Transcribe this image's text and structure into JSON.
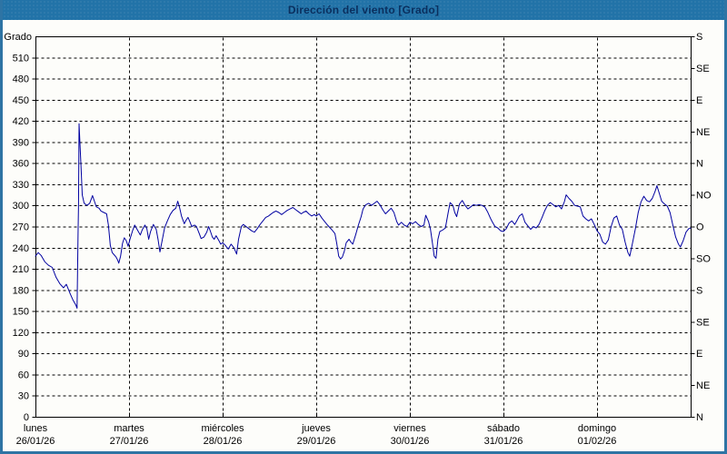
{
  "window": {
    "title": "Dirección del viento [Grado]"
  },
  "chart_data": {
    "type": "line",
    "title": "Dirección del viento [Grado]",
    "ylabel": "Grado",
    "grid": true,
    "grid_style": "dashed",
    "legend_position": "none",
    "line_color": "#0000a0",
    "y_axis_left": {
      "min": 0,
      "max": 540,
      "step": 30,
      "last_labeled": 510
    },
    "y_axis_right": {
      "step": 45,
      "labels": [
        "N",
        "NE",
        "E",
        "SE",
        "S",
        "SO",
        "O",
        "NO",
        "N",
        "NE",
        "E",
        "SE",
        "S"
      ]
    },
    "x_axis": {
      "days": [
        {
          "name": "lunes",
          "date": "26/01/26"
        },
        {
          "name": "martes",
          "date": "27/01/26"
        },
        {
          "name": "miércoles",
          "date": "28/01/26"
        },
        {
          "name": "jueves",
          "date": "29/01/26"
        },
        {
          "name": "viernes",
          "date": "30/01/26"
        },
        {
          "name": "sábado",
          "date": "31/01/26"
        },
        {
          "name": "domingo",
          "date": "01/02/26"
        }
      ]
    },
    "series": [
      {
        "name": "Dirección del viento [Grado]",
        "points": [
          [
            0.0,
            228
          ],
          [
            0.03,
            233
          ],
          [
            0.06,
            229
          ],
          [
            0.1,
            220
          ],
          [
            0.14,
            215
          ],
          [
            0.18,
            212
          ],
          [
            0.22,
            198
          ],
          [
            0.26,
            189
          ],
          [
            0.3,
            183
          ],
          [
            0.33,
            188
          ],
          [
            0.37,
            175
          ],
          [
            0.4,
            166
          ],
          [
            0.43,
            159
          ],
          [
            0.445,
            154
          ],
          [
            0.455,
            260
          ],
          [
            0.46,
            300
          ],
          [
            0.466,
            416
          ],
          [
            0.475,
            390
          ],
          [
            0.485,
            360
          ],
          [
            0.495,
            330
          ],
          [
            0.5,
            315
          ],
          [
            0.52,
            303
          ],
          [
            0.55,
            300
          ],
          [
            0.58,
            303
          ],
          [
            0.61,
            314
          ],
          [
            0.63,
            306
          ],
          [
            0.65,
            298
          ],
          [
            0.68,
            296
          ],
          [
            0.7,
            292
          ],
          [
            0.73,
            290
          ],
          [
            0.76,
            288
          ],
          [
            0.78,
            272
          ],
          [
            0.8,
            243
          ],
          [
            0.82,
            233
          ],
          [
            0.84,
            230
          ],
          [
            0.86,
            227
          ],
          [
            0.88,
            222
          ],
          [
            0.89,
            218
          ],
          [
            0.91,
            228
          ],
          [
            0.93,
            246
          ],
          [
            0.95,
            254
          ],
          [
            0.97,
            250
          ],
          [
            0.99,
            242
          ],
          [
            1.01,
            252
          ],
          [
            1.04,
            265
          ],
          [
            1.06,
            272
          ],
          [
            1.09,
            265
          ],
          [
            1.12,
            258
          ],
          [
            1.14,
            265
          ],
          [
            1.17,
            272
          ],
          [
            1.19,
            267
          ],
          [
            1.21,
            252
          ],
          [
            1.23,
            263
          ],
          [
            1.26,
            273
          ],
          [
            1.29,
            266
          ],
          [
            1.31,
            252
          ],
          [
            1.33,
            234
          ],
          [
            1.35,
            248
          ],
          [
            1.38,
            268
          ],
          [
            1.41,
            278
          ],
          [
            1.44,
            287
          ],
          [
            1.47,
            293
          ],
          [
            1.5,
            296
          ],
          [
            1.52,
            306
          ],
          [
            1.54,
            297
          ],
          [
            1.56,
            285
          ],
          [
            1.59,
            274
          ],
          [
            1.61,
            279
          ],
          [
            1.63,
            283
          ],
          [
            1.65,
            277
          ],
          [
            1.67,
            270
          ],
          [
            1.7,
            272
          ],
          [
            1.72,
            270
          ],
          [
            1.75,
            260
          ],
          [
            1.77,
            253
          ],
          [
            1.8,
            255
          ],
          [
            1.83,
            262
          ],
          [
            1.85,
            270
          ],
          [
            1.87,
            263
          ],
          [
            1.89,
            255
          ],
          [
            1.91,
            252
          ],
          [
            1.93,
            257
          ],
          [
            1.96,
            250
          ],
          [
            1.98,
            245
          ],
          [
            2.0,
            247
          ],
          [
            2.03,
            243
          ],
          [
            2.06,
            238
          ],
          [
            2.09,
            245
          ],
          [
            2.12,
            240
          ],
          [
            2.15,
            231
          ],
          [
            2.17,
            252
          ],
          [
            2.2,
            270
          ],
          [
            2.22,
            273
          ],
          [
            2.25,
            270
          ],
          [
            2.28,
            267
          ],
          [
            2.31,
            264
          ],
          [
            2.34,
            262
          ],
          [
            2.37,
            267
          ],
          [
            2.4,
            273
          ],
          [
            2.43,
            278
          ],
          [
            2.46,
            283
          ],
          [
            2.49,
            285
          ],
          [
            2.51,
            287
          ],
          [
            2.54,
            290
          ],
          [
            2.57,
            292
          ],
          [
            2.6,
            290
          ],
          [
            2.63,
            287
          ],
          [
            2.66,
            290
          ],
          [
            2.69,
            293
          ],
          [
            2.72,
            295
          ],
          [
            2.75,
            297
          ],
          [
            2.78,
            294
          ],
          [
            2.81,
            291
          ],
          [
            2.84,
            288
          ],
          [
            2.86,
            290
          ],
          [
            2.89,
            292
          ],
          [
            2.92,
            288
          ],
          [
            2.95,
            285
          ],
          [
            2.98,
            287
          ],
          [
            3.0,
            285
          ],
          [
            3.03,
            288
          ],
          [
            3.06,
            282
          ],
          [
            3.09,
            277
          ],
          [
            3.12,
            272
          ],
          [
            3.15,
            268
          ],
          [
            3.17,
            265
          ],
          [
            3.2,
            260
          ],
          [
            3.22,
            245
          ],
          [
            3.24,
            228
          ],
          [
            3.26,
            224
          ],
          [
            3.28,
            227
          ],
          [
            3.3,
            235
          ],
          [
            3.32,
            247
          ],
          [
            3.35,
            252
          ],
          [
            3.37,
            248
          ],
          [
            3.39,
            245
          ],
          [
            3.42,
            258
          ],
          [
            3.45,
            272
          ],
          [
            3.48,
            284
          ],
          [
            3.5,
            295
          ],
          [
            3.53,
            301
          ],
          [
            3.56,
            303
          ],
          [
            3.59,
            300
          ],
          [
            3.62,
            303
          ],
          [
            3.65,
            306
          ],
          [
            3.68,
            301
          ],
          [
            3.71,
            294
          ],
          [
            3.74,
            288
          ],
          [
            3.77,
            292
          ],
          [
            3.8,
            296
          ],
          [
            3.83,
            290
          ],
          [
            3.86,
            277
          ],
          [
            3.88,
            272
          ],
          [
            3.91,
            276
          ],
          [
            3.94,
            272
          ],
          [
            3.97,
            270
          ],
          [
            4.0,
            276
          ],
          [
            4.03,
            274
          ],
          [
            4.06,
            277
          ],
          [
            4.09,
            273
          ],
          [
            4.12,
            270
          ],
          [
            4.15,
            272
          ],
          [
            4.17,
            286
          ],
          [
            4.2,
            277
          ],
          [
            4.22,
            266
          ],
          [
            4.24,
            248
          ],
          [
            4.26,
            228
          ],
          [
            4.28,
            225
          ],
          [
            4.3,
            252
          ],
          [
            4.32,
            263
          ],
          [
            4.35,
            265
          ],
          [
            4.38,
            268
          ],
          [
            4.41,
            290
          ],
          [
            4.43,
            304
          ],
          [
            4.46,
            300
          ],
          [
            4.48,
            290
          ],
          [
            4.5,
            284
          ],
          [
            4.53,
            302
          ],
          [
            4.56,
            307
          ],
          [
            4.59,
            300
          ],
          [
            4.62,
            295
          ],
          [
            4.65,
            298
          ],
          [
            4.68,
            301
          ],
          [
            4.71,
            300
          ],
          [
            4.74,
            301
          ],
          [
            4.77,
            300
          ],
          [
            4.8,
            298
          ],
          [
            4.83,
            291
          ],
          [
            4.86,
            282
          ],
          [
            4.88,
            277
          ],
          [
            4.91,
            270
          ],
          [
            4.94,
            268
          ],
          [
            4.97,
            264
          ],
          [
            5.0,
            263
          ],
          [
            5.03,
            267
          ],
          [
            5.06,
            275
          ],
          [
            5.09,
            278
          ],
          [
            5.12,
            273
          ],
          [
            5.15,
            280
          ],
          [
            5.17,
            285
          ],
          [
            5.2,
            288
          ],
          [
            5.23,
            276
          ],
          [
            5.26,
            271
          ],
          [
            5.29,
            266
          ],
          [
            5.32,
            270
          ],
          [
            5.35,
            268
          ],
          [
            5.38,
            273
          ],
          [
            5.41,
            282
          ],
          [
            5.44,
            292
          ],
          [
            5.47,
            300
          ],
          [
            5.5,
            304
          ],
          [
            5.53,
            301
          ],
          [
            5.56,
            298
          ],
          [
            5.59,
            300
          ],
          [
            5.62,
            295
          ],
          [
            5.65,
            305
          ],
          [
            5.67,
            315
          ],
          [
            5.7,
            310
          ],
          [
            5.73,
            306
          ],
          [
            5.76,
            300
          ],
          [
            5.79,
            299
          ],
          [
            5.82,
            298
          ],
          [
            5.85,
            285
          ],
          [
            5.88,
            281
          ],
          [
            5.91,
            278
          ],
          [
            5.94,
            281
          ],
          [
            5.97,
            273
          ],
          [
            6.0,
            264
          ],
          [
            6.03,
            259
          ],
          [
            6.06,
            248
          ],
          [
            6.09,
            245
          ],
          [
            6.12,
            251
          ],
          [
            6.15,
            270
          ],
          [
            6.18,
            282
          ],
          [
            6.21,
            285
          ],
          [
            6.24,
            272
          ],
          [
            6.27,
            266
          ],
          [
            6.3,
            248
          ],
          [
            6.33,
            233
          ],
          [
            6.35,
            228
          ],
          [
            6.38,
            247
          ],
          [
            6.41,
            267
          ],
          [
            6.44,
            290
          ],
          [
            6.47,
            305
          ],
          [
            6.5,
            313
          ],
          [
            6.53,
            307
          ],
          [
            6.56,
            305
          ],
          [
            6.59,
            310
          ],
          [
            6.62,
            320
          ],
          [
            6.64,
            328
          ],
          [
            6.67,
            315
          ],
          [
            6.69,
            306
          ],
          [
            6.72,
            302
          ],
          [
            6.75,
            299
          ],
          [
            6.78,
            290
          ],
          [
            6.81,
            272
          ],
          [
            6.84,
            255
          ],
          [
            6.87,
            245
          ],
          [
            6.89,
            241
          ],
          [
            6.92,
            250
          ],
          [
            6.95,
            262
          ],
          [
            6.98,
            267
          ],
          [
            7.0,
            268
          ]
        ]
      }
    ]
  },
  "colors": {
    "titlebar_bg": "#2273a8",
    "title_text": "#0a2f5e",
    "window_border": "#2e74a4",
    "plot_border": "#000000",
    "grid": "#000000",
    "series_line": "#0000a0"
  }
}
